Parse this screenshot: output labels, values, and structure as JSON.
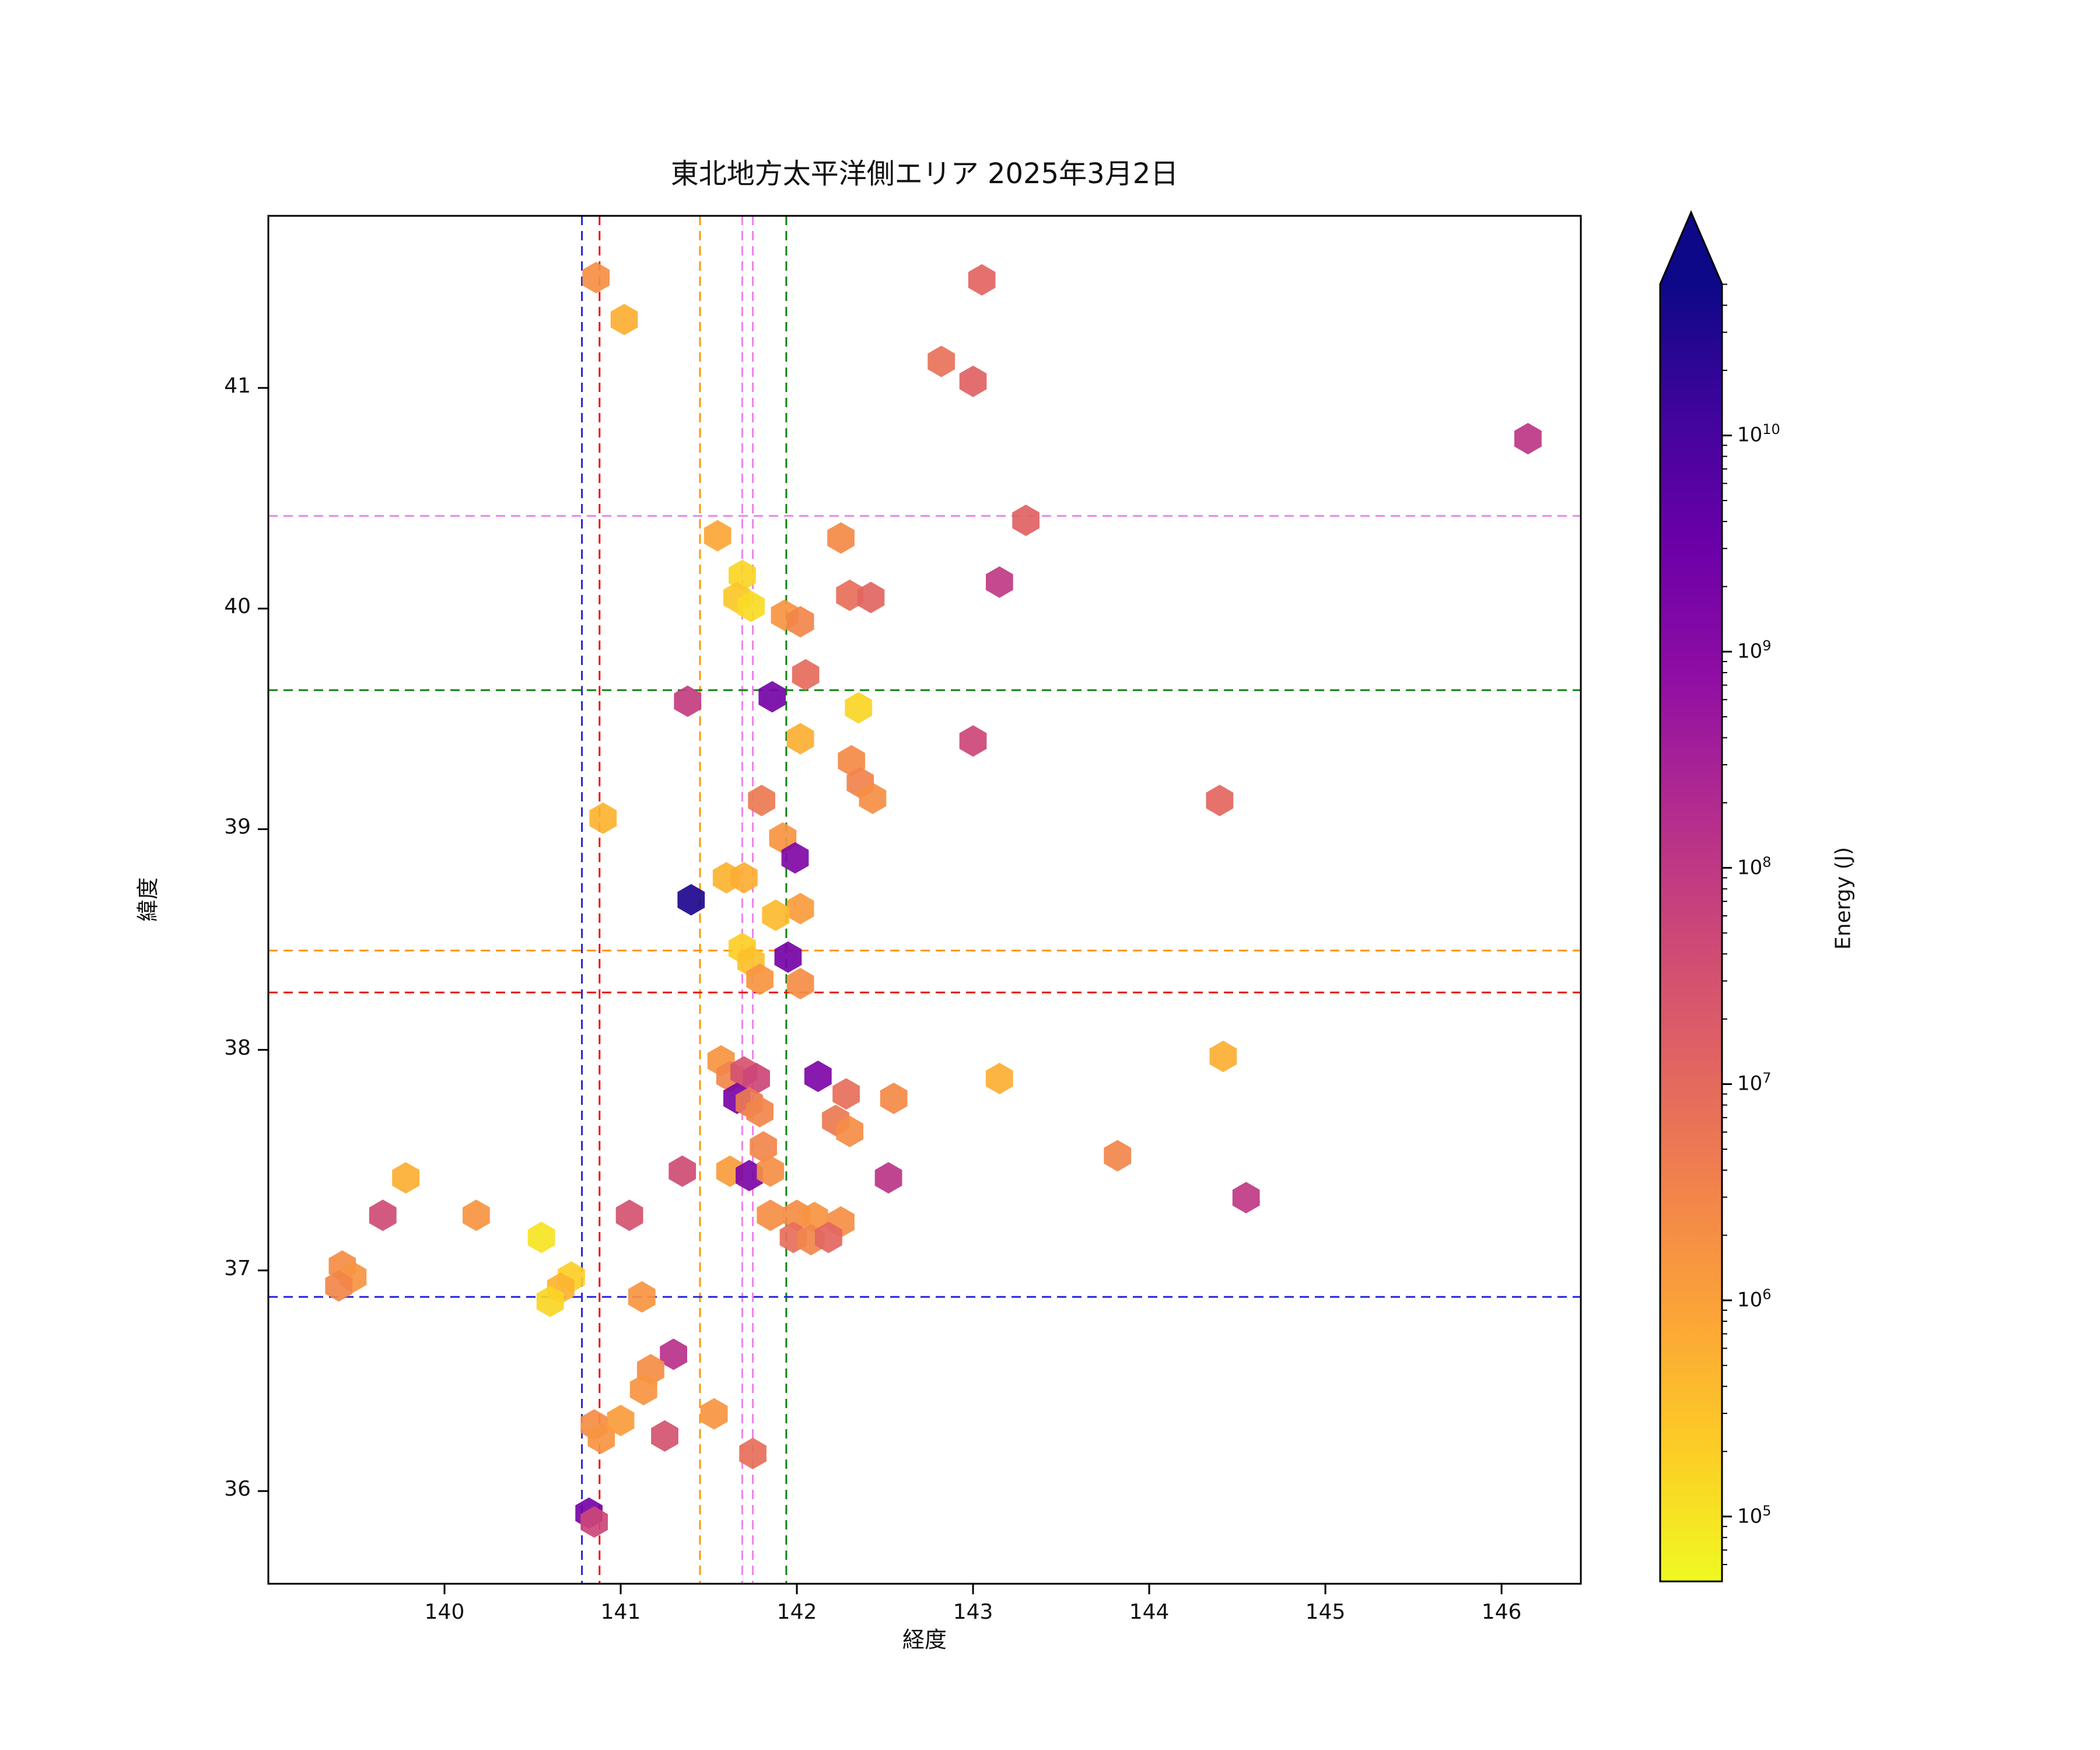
{
  "figure": {
    "title": "東北地方太平洋側エリア 2025年3月2日",
    "xlabel": "経度",
    "ylabel": "緯度",
    "colorbar_label": "Energy (J)"
  },
  "colors": {
    "plasma_stops": [
      "#0d0887",
      "#41049d",
      "#6a00a8",
      "#8f0da4",
      "#b12a90",
      "#cc4778",
      "#e16462",
      "#f2844b",
      "#fca636",
      "#fcce25",
      "#f0f921"
    ],
    "spine": "#000000"
  },
  "chart_data": {
    "type": "scatter",
    "title": "東北地方太平洋側エリア 2025年3月2日",
    "xlabel": "経度",
    "ylabel": "緯度",
    "xlim": [
      139.0,
      146.45
    ],
    "ylim": [
      35.58,
      41.78
    ],
    "x_ticks": [
      140,
      141,
      142,
      143,
      144,
      145,
      146
    ],
    "y_ticks": [
      36,
      37,
      38,
      39,
      40,
      41
    ],
    "grid": false,
    "marker": "hexagon",
    "colormap": "plasma_r",
    "color_scale": {
      "type": "log",
      "vmin_exp": 4.7,
      "vmax_exp": 10.7,
      "extend": "max"
    },
    "colorbar": {
      "label": "Energy (J)",
      "tick_exponents": [
        5,
        6,
        7,
        8,
        9,
        10
      ],
      "position": "right"
    },
    "vlines": [
      {
        "x": 140.78,
        "color": "#2424db",
        "style": "dashed"
      },
      {
        "x": 140.88,
        "color": "#e81313",
        "style": "dashed"
      },
      {
        "x": 141.45,
        "color": "#ff9800",
        "style": "dashed"
      },
      {
        "x": 141.69,
        "color": "#ee82ee",
        "style": "dashed"
      },
      {
        "x": 141.75,
        "color": "#ee82ee",
        "style": "dashed"
      },
      {
        "x": 141.94,
        "color": "#0e820e",
        "style": "dashed"
      }
    ],
    "hlines": [
      {
        "y": 40.42,
        "color": "#ee82ee",
        "style": "dashed"
      },
      {
        "y": 39.63,
        "color": "#0e820e",
        "style": "dashed"
      },
      {
        "y": 38.45,
        "color": "#ff9800",
        "style": "dashed"
      },
      {
        "y": 38.26,
        "color": "#e81313",
        "style": "dashed"
      },
      {
        "y": 36.88,
        "color": "#2424db",
        "style": "dashed"
      }
    ],
    "points": [
      [
        140.86,
        41.5,
        2000000.0
      ],
      [
        141.02,
        41.31,
        600000.0
      ],
      [
        142.82,
        41.12,
        7000000.0
      ],
      [
        143.0,
        41.03,
        14000000.0
      ],
      [
        143.05,
        41.49,
        12000000.0
      ],
      [
        146.15,
        40.77,
        110000000.0
      ],
      [
        143.3,
        40.4,
        14000000.0
      ],
      [
        141.55,
        40.33,
        800000.0
      ],
      [
        142.25,
        40.32,
        2500000.0
      ],
      [
        143.15,
        40.12,
        100000000.0
      ],
      [
        141.69,
        40.15,
        160000.0
      ],
      [
        141.66,
        40.05,
        250000.0
      ],
      [
        141.74,
        40.01,
        130000.0
      ],
      [
        142.3,
        40.06,
        8000000.0
      ],
      [
        142.42,
        40.05,
        12000000.0
      ],
      [
        141.93,
        39.97,
        1600000.0
      ],
      [
        142.02,
        39.94,
        3000000.0
      ],
      [
        142.05,
        39.7,
        9000000.0
      ],
      [
        141.38,
        39.58,
        80000000.0
      ],
      [
        141.86,
        39.6,
        2000000000.0
      ],
      [
        142.02,
        39.41,
        600000.0
      ],
      [
        142.35,
        39.55,
        160000.0
      ],
      [
        143.0,
        39.4,
        50000000.0
      ],
      [
        142.31,
        39.31,
        2500000.0
      ],
      [
        142.36,
        39.21,
        3500000.0
      ],
      [
        142.43,
        39.14,
        2000000.0
      ],
      [
        144.4,
        39.13,
        11000000.0
      ],
      [
        141.8,
        39.13,
        5000000.0
      ],
      [
        140.9,
        39.05,
        500000.0
      ],
      [
        141.92,
        38.96,
        1600000.0
      ],
      [
        141.99,
        38.87,
        1400000000.0
      ],
      [
        141.6,
        38.78,
        500000.0
      ],
      [
        141.7,
        38.78,
        600000.0
      ],
      [
        141.4,
        38.68,
        30000000000.0
      ],
      [
        142.02,
        38.64,
        1200000.0
      ],
      [
        141.88,
        38.61,
        400000.0
      ],
      [
        141.69,
        38.46,
        200000.0
      ],
      [
        141.74,
        38.4,
        320000.0
      ],
      [
        141.95,
        38.42,
        2000000000.0
      ],
      [
        141.79,
        38.32,
        1600000.0
      ],
      [
        142.02,
        38.3,
        2200000.0
      ],
      [
        144.42,
        37.97,
        600000.0
      ],
      [
        143.15,
        37.87,
        600000.0
      ],
      [
        141.57,
        37.95,
        1600000.0
      ],
      [
        141.62,
        37.88,
        3000000.0
      ],
      [
        141.7,
        37.9,
        30000000.0
      ],
      [
        141.77,
        37.87,
        50000000.0
      ],
      [
        141.66,
        37.78,
        1800000000.0
      ],
      [
        141.73,
        37.76,
        5000000.0
      ],
      [
        141.79,
        37.72,
        3000000.0
      ],
      [
        142.12,
        37.88,
        1500000000.0
      ],
      [
        142.28,
        37.8,
        8000000.0
      ],
      [
        142.55,
        37.78,
        2500000.0
      ],
      [
        142.22,
        37.68,
        5000000.0
      ],
      [
        142.3,
        37.63,
        2200000.0
      ],
      [
        141.81,
        37.56,
        3000000.0
      ],
      [
        143.82,
        37.52,
        3000000.0
      ],
      [
        141.35,
        37.45,
        40000000.0
      ],
      [
        141.62,
        37.45,
        1200000.0
      ],
      [
        141.73,
        37.43,
        1600000000.0
      ],
      [
        141.85,
        37.45,
        2000000.0
      ],
      [
        142.52,
        37.42,
        120000000.0
      ],
      [
        144.55,
        37.33,
        100000000.0
      ],
      [
        139.78,
        37.42,
        600000.0
      ],
      [
        139.65,
        37.25,
        40000000.0
      ],
      [
        140.18,
        37.25,
        1600000.0
      ],
      [
        141.05,
        37.25,
        30000000.0
      ],
      [
        141.85,
        37.25,
        2000000.0
      ],
      [
        142.0,
        37.25,
        2200000.0
      ],
      [
        142.1,
        37.24,
        1600000.0
      ],
      [
        142.25,
        37.22,
        2000000.0
      ],
      [
        141.98,
        37.15,
        8000000.0
      ],
      [
        142.08,
        37.14,
        3000000.0
      ],
      [
        142.18,
        37.15,
        11000000.0
      ],
      [
        140.55,
        37.15,
        100000.0
      ],
      [
        139.42,
        37.02,
        2200000.0
      ],
      [
        139.48,
        36.97,
        1600000.0
      ],
      [
        139.4,
        36.93,
        3000000.0
      ],
      [
        140.72,
        36.97,
        200000.0
      ],
      [
        140.66,
        36.92,
        500000.0
      ],
      [
        140.6,
        36.86,
        160000.0
      ],
      [
        141.12,
        36.88,
        1600000.0
      ],
      [
        141.3,
        36.62,
        140000000.0
      ],
      [
        141.17,
        36.55,
        2200000.0
      ],
      [
        141.13,
        36.46,
        1600000.0
      ],
      [
        141.53,
        36.35,
        1600000.0
      ],
      [
        140.85,
        36.3,
        2200000.0
      ],
      [
        140.89,
        36.24,
        1600000.0
      ],
      [
        141.0,
        36.32,
        1200000.0
      ],
      [
        141.25,
        36.25,
        30000000.0
      ],
      [
        141.75,
        36.17,
        8000000.0
      ],
      [
        140.82,
        35.9,
        2000000000.0
      ],
      [
        140.85,
        35.86,
        50000000.0
      ]
    ]
  }
}
